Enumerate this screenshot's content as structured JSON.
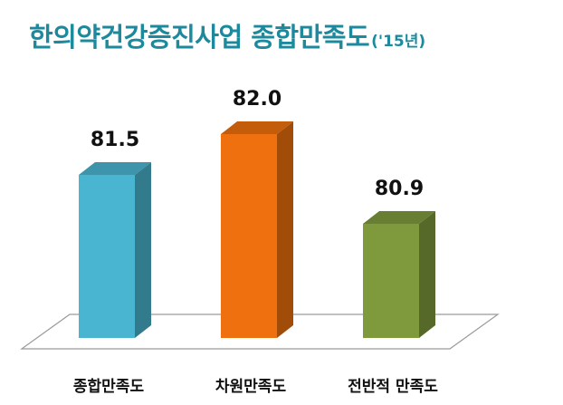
{
  "title": {
    "main": "한의약건강증진사업 종합만족도",
    "sub": "('15년)"
  },
  "colors": {
    "title": "#1c8a9c"
  },
  "chart_data": {
    "type": "bar",
    "style": "3d",
    "categories": [
      "종합만족도",
      "차원만족도",
      "전반적 만족도"
    ],
    "values": [
      81.5,
      82.0,
      80.9
    ],
    "value_labels": [
      "81.5",
      "82.0",
      "80.9"
    ],
    "colors": [
      "#4ab5d0",
      "#ee700e",
      "#7f9a3d"
    ],
    "ylim": [
      79.5,
      82.5
    ],
    "grid": false,
    "legend": "none"
  }
}
